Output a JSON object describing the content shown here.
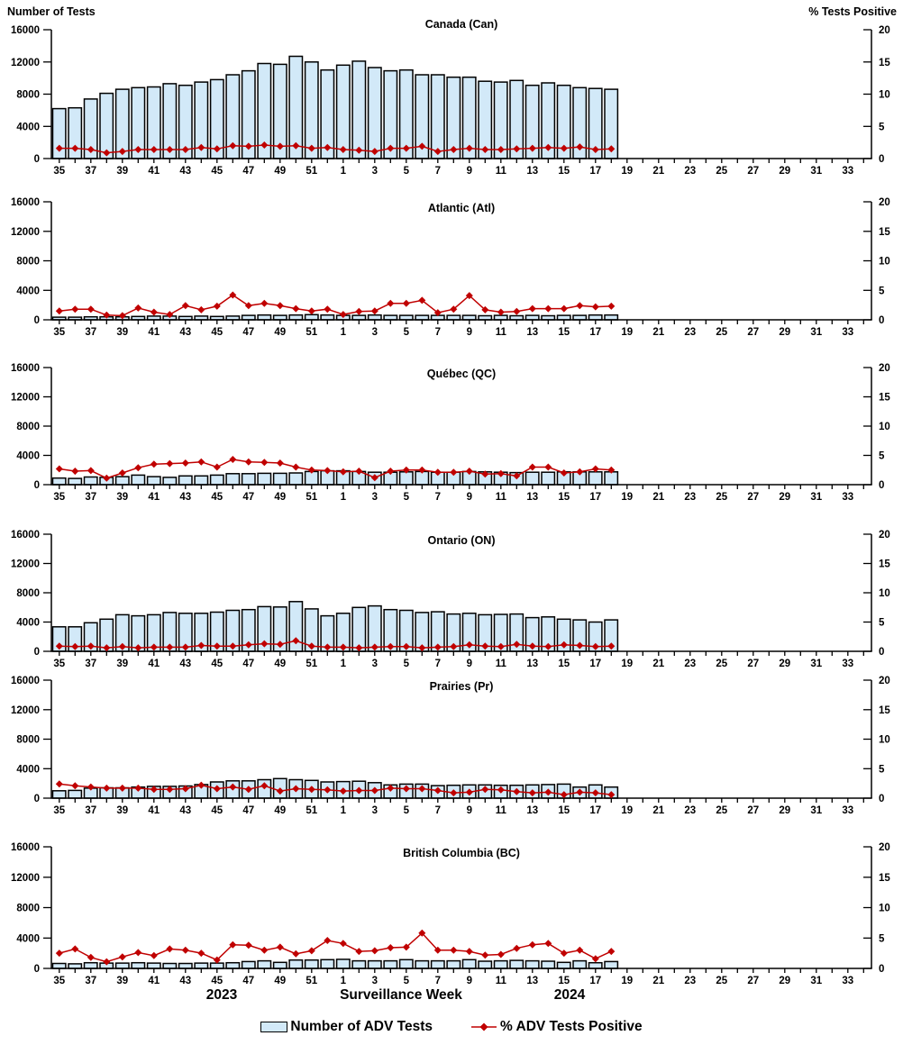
{
  "header": {
    "left_axis_title": "Number of Tests",
    "right_axis_title": "% Tests Positive"
  },
  "footer": {
    "year_left": "2023",
    "xaxis_label": "Surveillance Week",
    "year_right": "2024"
  },
  "legend": {
    "bars_label": "Number of ADV Tests",
    "line_label": "% ADV Tests Positive"
  },
  "colors": {
    "bar_fill": "#d2e9f8",
    "bar_stroke": "#000000",
    "line": "#c00000",
    "axis": "#000000"
  },
  "xaxis": {
    "label": "Surveillance Week",
    "weeks_axis": [
      35,
      36,
      37,
      38,
      39,
      40,
      41,
      42,
      43,
      44,
      45,
      46,
      47,
      48,
      49,
      50,
      51,
      52,
      1,
      2,
      3,
      4,
      5,
      6,
      7,
      8,
      9,
      10,
      11,
      12,
      13,
      14,
      15,
      16,
      17,
      18,
      19,
      20,
      21,
      22,
      23,
      24,
      25,
      26,
      27,
      28,
      29,
      30,
      31,
      32,
      33,
      34
    ],
    "labeled_weeks": [
      35,
      37,
      39,
      41,
      43,
      45,
      47,
      49,
      51,
      1,
      3,
      5,
      7,
      9,
      11,
      13,
      15,
      17,
      19,
      21,
      23,
      25,
      27,
      29,
      31,
      33
    ]
  },
  "chart_data": [
    {
      "type": "bar+line",
      "title": "Canada (Can)",
      "categories_weeks": [
        35,
        36,
        37,
        38,
        39,
        40,
        41,
        42,
        43,
        44,
        45,
        46,
        47,
        48,
        49,
        50,
        51,
        52,
        1,
        2,
        3,
        4,
        5,
        6,
        7,
        8,
        9,
        10,
        11,
        12,
        13,
        14,
        15,
        16,
        17,
        18
      ],
      "left_axis": {
        "label": "Number of Tests",
        "range": [
          0,
          16000
        ],
        "ticks": [
          0,
          4000,
          8000,
          12000,
          16000
        ]
      },
      "right_axis": {
        "label": "% Tests Positive",
        "range": [
          0,
          20
        ],
        "ticks": [
          0,
          5,
          10,
          15,
          20
        ]
      },
      "series": [
        {
          "name": "Number of ADV Tests",
          "type": "bar",
          "axis": "left",
          "values": [
            6200,
            6300,
            7400,
            8100,
            8600,
            8800,
            8900,
            9300,
            9100,
            9500,
            9800,
            10400,
            10900,
            11800,
            11700,
            12700,
            12000,
            11000,
            11600,
            12100,
            11300,
            10900,
            11000,
            10400,
            10400,
            10100,
            10100,
            9600,
            9500,
            9700,
            9100,
            9400,
            9100,
            8800,
            8700,
            8600
          ]
        },
        {
          "name": "% ADV Tests Positive",
          "type": "line",
          "axis": "right",
          "values": [
            1.6,
            1.6,
            1.4,
            0.9,
            1.1,
            1.4,
            1.4,
            1.4,
            1.4,
            1.7,
            1.5,
            2.0,
            1.9,
            2.1,
            1.9,
            2.0,
            1.6,
            1.7,
            1.4,
            1.3,
            1.1,
            1.6,
            1.6,
            1.9,
            1.1,
            1.4,
            1.6,
            1.4,
            1.4,
            1.5,
            1.6,
            1.7,
            1.6,
            1.8,
            1.4,
            1.5
          ]
        }
      ]
    },
    {
      "type": "bar+line",
      "title": "Atlantic (Atl)",
      "categories_weeks": [
        35,
        36,
        37,
        38,
        39,
        40,
        41,
        42,
        43,
        44,
        45,
        46,
        47,
        48,
        49,
        50,
        51,
        52,
        1,
        2,
        3,
        4,
        5,
        6,
        7,
        8,
        9,
        10,
        11,
        12,
        13,
        14,
        15,
        16,
        17,
        18
      ],
      "left_axis": {
        "label": "Number of Tests",
        "range": [
          0,
          16000
        ],
        "ticks": [
          0,
          4000,
          8000,
          12000,
          16000
        ]
      },
      "right_axis": {
        "label": "% Tests Positive",
        "range": [
          0,
          20
        ],
        "ticks": [
          0,
          5,
          10,
          15,
          20
        ]
      },
      "series": [
        {
          "name": "Number of ADV Tests",
          "type": "bar",
          "axis": "left",
          "values": [
            350,
            350,
            400,
            400,
            400,
            450,
            500,
            500,
            450,
            500,
            450,
            500,
            600,
            650,
            600,
            650,
            700,
            650,
            600,
            600,
            650,
            600,
            600,
            600,
            600,
            600,
            600,
            550,
            600,
            550,
            600,
            550,
            600,
            600,
            650,
            650
          ]
        },
        {
          "name": "% ADV Tests Positive",
          "type": "line",
          "axis": "right",
          "values": [
            1.5,
            1.8,
            1.8,
            0.8,
            0.7,
            2.0,
            1.3,
            0.9,
            2.4,
            1.7,
            2.3,
            4.2,
            2.4,
            2.8,
            2.4,
            1.9,
            1.5,
            1.8,
            0.9,
            1.4,
            1.5,
            2.8,
            2.8,
            3.3,
            1.2,
            1.8,
            4.1,
            1.7,
            1.3,
            1.4,
            1.9,
            1.9,
            1.9,
            2.4,
            2.2,
            2.3
          ]
        }
      ]
    },
    {
      "type": "bar+line",
      "title": "Québec (QC)",
      "categories_weeks": [
        35,
        36,
        37,
        38,
        39,
        40,
        41,
        42,
        43,
        44,
        45,
        46,
        47,
        48,
        49,
        50,
        51,
        52,
        1,
        2,
        3,
        4,
        5,
        6,
        7,
        8,
        9,
        10,
        11,
        12,
        13,
        14,
        15,
        16,
        17,
        18
      ],
      "left_axis": {
        "label": "Number of Tests",
        "range": [
          0,
          16000
        ],
        "ticks": [
          0,
          4000,
          8000,
          12000,
          16000
        ]
      },
      "right_axis": {
        "label": "% Tests Positive",
        "range": [
          0,
          20
        ],
        "ticks": [
          0,
          5,
          10,
          15,
          20
        ]
      },
      "series": [
        {
          "name": "Number of ADV Tests",
          "type": "bar",
          "axis": "left",
          "values": [
            900,
            850,
            1050,
            1000,
            1100,
            1300,
            1100,
            1000,
            1200,
            1200,
            1300,
            1500,
            1500,
            1550,
            1550,
            1600,
            1800,
            1900,
            1900,
            1800,
            1700,
            1700,
            1750,
            1800,
            1700,
            1700,
            1800,
            1750,
            1700,
            1650,
            1700,
            1700,
            1750,
            1750,
            1750,
            1750
          ]
        },
        {
          "name": "% ADV Tests Positive",
          "type": "line",
          "axis": "right",
          "values": [
            2.7,
            2.3,
            2.4,
            1.1,
            2.0,
            2.9,
            3.5,
            3.6,
            3.7,
            3.9,
            3.0,
            4.3,
            3.9,
            3.8,
            3.7,
            3.0,
            2.5,
            2.4,
            2.2,
            2.3,
            1.2,
            2.3,
            2.5,
            2.5,
            2.1,
            2.1,
            2.3,
            1.8,
            1.9,
            1.5,
            3.0,
            3.0,
            2.0,
            2.2,
            2.7,
            2.5
          ]
        }
      ]
    },
    {
      "type": "bar+line",
      "title": "Ontario (ON)",
      "categories_weeks": [
        35,
        36,
        37,
        38,
        39,
        40,
        41,
        42,
        43,
        44,
        45,
        46,
        47,
        48,
        49,
        50,
        51,
        52,
        1,
        2,
        3,
        4,
        5,
        6,
        7,
        8,
        9,
        10,
        11,
        12,
        13,
        14,
        15,
        16,
        17,
        18
      ],
      "left_axis": {
        "label": "Number of Tests",
        "range": [
          0,
          16000
        ],
        "ticks": [
          0,
          4000,
          8000,
          12000,
          16000
        ]
      },
      "right_axis": {
        "label": "% Tests Positive",
        "range": [
          0,
          20
        ],
        "ticks": [
          0,
          5,
          10,
          15,
          20
        ]
      },
      "series": [
        {
          "name": "Number of ADV Tests",
          "type": "bar",
          "axis": "left",
          "values": [
            3350,
            3350,
            3900,
            4400,
            5000,
            4850,
            5000,
            5300,
            5200,
            5200,
            5350,
            5600,
            5700,
            6100,
            6050,
            6800,
            5800,
            4850,
            5200,
            6000,
            6200,
            5700,
            5600,
            5300,
            5400,
            5100,
            5200,
            5000,
            5050,
            5100,
            4600,
            4700,
            4400,
            4300,
            4000,
            4300
          ]
        },
        {
          "name": "% ADV Tests Positive",
          "type": "line",
          "axis": "right",
          "values": [
            0.9,
            0.8,
            0.9,
            0.6,
            0.8,
            0.6,
            0.7,
            0.7,
            0.7,
            1.0,
            0.9,
            0.9,
            1.1,
            1.3,
            1.2,
            1.8,
            0.9,
            0.7,
            0.7,
            0.6,
            0.7,
            0.8,
            0.8,
            0.6,
            0.7,
            0.8,
            1.1,
            0.9,
            0.8,
            1.2,
            0.9,
            0.8,
            1.1,
            1.0,
            0.8,
            0.9
          ]
        }
      ]
    },
    {
      "type": "bar+line",
      "title": "Prairies (Pr)",
      "categories_weeks": [
        35,
        36,
        37,
        38,
        39,
        40,
        41,
        42,
        43,
        44,
        45,
        46,
        47,
        48,
        49,
        50,
        51,
        52,
        1,
        2,
        3,
        4,
        5,
        6,
        7,
        8,
        9,
        10,
        11,
        12,
        13,
        14,
        15,
        16,
        17,
        18
      ],
      "left_axis": {
        "label": "Number of Tests",
        "range": [
          0,
          16000
        ],
        "ticks": [
          0,
          4000,
          8000,
          12000,
          16000
        ]
      },
      "right_axis": {
        "label": "% Tests Positive",
        "range": [
          0,
          20
        ],
        "ticks": [
          0,
          5,
          10,
          15,
          20
        ]
      },
      "series": [
        {
          "name": "Number of ADV Tests",
          "type": "bar",
          "axis": "left",
          "values": [
            1000,
            1050,
            1350,
            1400,
            1400,
            1500,
            1600,
            1600,
            1650,
            1850,
            2200,
            2350,
            2350,
            2500,
            2650,
            2500,
            2400,
            2200,
            2250,
            2300,
            2100,
            1800,
            1900,
            1900,
            1700,
            1750,
            1800,
            1800,
            1750,
            1750,
            1800,
            1850,
            1900,
            1500,
            1800,
            1500
          ]
        },
        {
          "name": "% ADV Tests Positive",
          "type": "line",
          "axis": "right",
          "values": [
            2.4,
            2.1,
            1.9,
            1.7,
            1.7,
            1.7,
            1.5,
            1.5,
            1.6,
            2.2,
            1.6,
            1.9,
            1.5,
            2.1,
            1.2,
            1.6,
            1.5,
            1.4,
            1.2,
            1.3,
            1.3,
            1.7,
            1.6,
            1.6,
            1.3,
            0.9,
            1.0,
            1.5,
            1.4,
            1.1,
            0.9,
            1.0,
            0.6,
            1.0,
            0.9,
            0.6
          ]
        }
      ]
    },
    {
      "type": "bar+line",
      "title": "British Columbia (BC)",
      "categories_weeks": [
        35,
        36,
        37,
        38,
        39,
        40,
        41,
        42,
        43,
        44,
        45,
        46,
        47,
        48,
        49,
        50,
        51,
        52,
        1,
        2,
        3,
        4,
        5,
        6,
        7,
        8,
        9,
        10,
        11,
        12,
        13,
        14,
        15,
        16,
        17,
        18
      ],
      "left_axis": {
        "label": "Number of Tests",
        "range": [
          0,
          16000
        ],
        "ticks": [
          0,
          4000,
          8000,
          12000,
          16000
        ]
      },
      "right_axis": {
        "label": "% Tests Positive",
        "range": [
          0,
          20
        ],
        "ticks": [
          0,
          5,
          10,
          15,
          20
        ]
      },
      "series": [
        {
          "name": "Number of ADV Tests",
          "type": "bar",
          "axis": "left",
          "values": [
            650,
            600,
            750,
            700,
            700,
            750,
            700,
            650,
            650,
            700,
            700,
            750,
            900,
            1000,
            800,
            1100,
            1100,
            1150,
            1200,
            1000,
            1000,
            1000,
            1150,
            1000,
            1000,
            1000,
            1150,
            950,
            1000,
            1050,
            1000,
            950,
            800,
            1000,
            750,
            900
          ]
        },
        {
          "name": "% ADV Tests Positive",
          "type": "line",
          "axis": "right",
          "values": [
            2.5,
            3.2,
            1.8,
            1.1,
            1.9,
            2.6,
            2.1,
            3.2,
            3.0,
            2.5,
            1.4,
            3.9,
            3.8,
            3.0,
            3.5,
            2.4,
            2.9,
            4.6,
            4.1,
            2.8,
            2.9,
            3.4,
            3.5,
            5.8,
            3.0,
            3.0,
            2.8,
            2.2,
            2.3,
            3.3,
            3.9,
            4.1,
            2.5,
            3.0,
            1.6,
            2.8
          ]
        }
      ]
    }
  ]
}
